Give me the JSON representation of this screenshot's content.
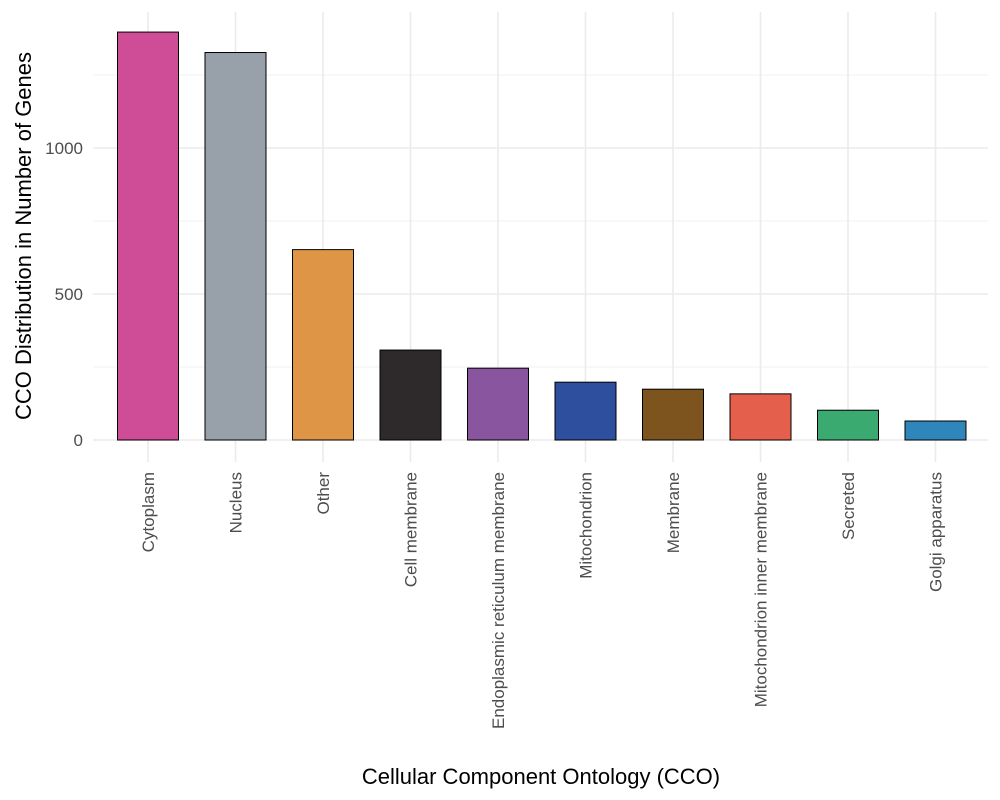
{
  "chart_data": {
    "type": "bar",
    "title": "",
    "xlabel": "Cellular Component Ontology (CCO)",
    "ylabel": "CCO Distribution in Number of Genes",
    "categories": [
      "Cytoplasm",
      "Nucleus",
      "Other",
      "Cell membrane",
      "Endoplasmic reticulum membrane",
      "Mitochondrion",
      "Membrane",
      "Mitochondrion inner membrane",
      "Secreted",
      "Golgi apparatus"
    ],
    "values": [
      1397,
      1327,
      652,
      308,
      246,
      198,
      174,
      158,
      102,
      65
    ],
    "colors": [
      "#CF4C97",
      "#98A1A9",
      "#DE9545",
      "#2E2A2B",
      "#8A559F",
      "#2E4F9E",
      "#7E541E",
      "#E5604C",
      "#3AAA70",
      "#2E86BA"
    ],
    "ylim": [
      0,
      1470
    ],
    "yticks": [
      0,
      500,
      1000
    ],
    "grid": true,
    "legend": "none"
  }
}
